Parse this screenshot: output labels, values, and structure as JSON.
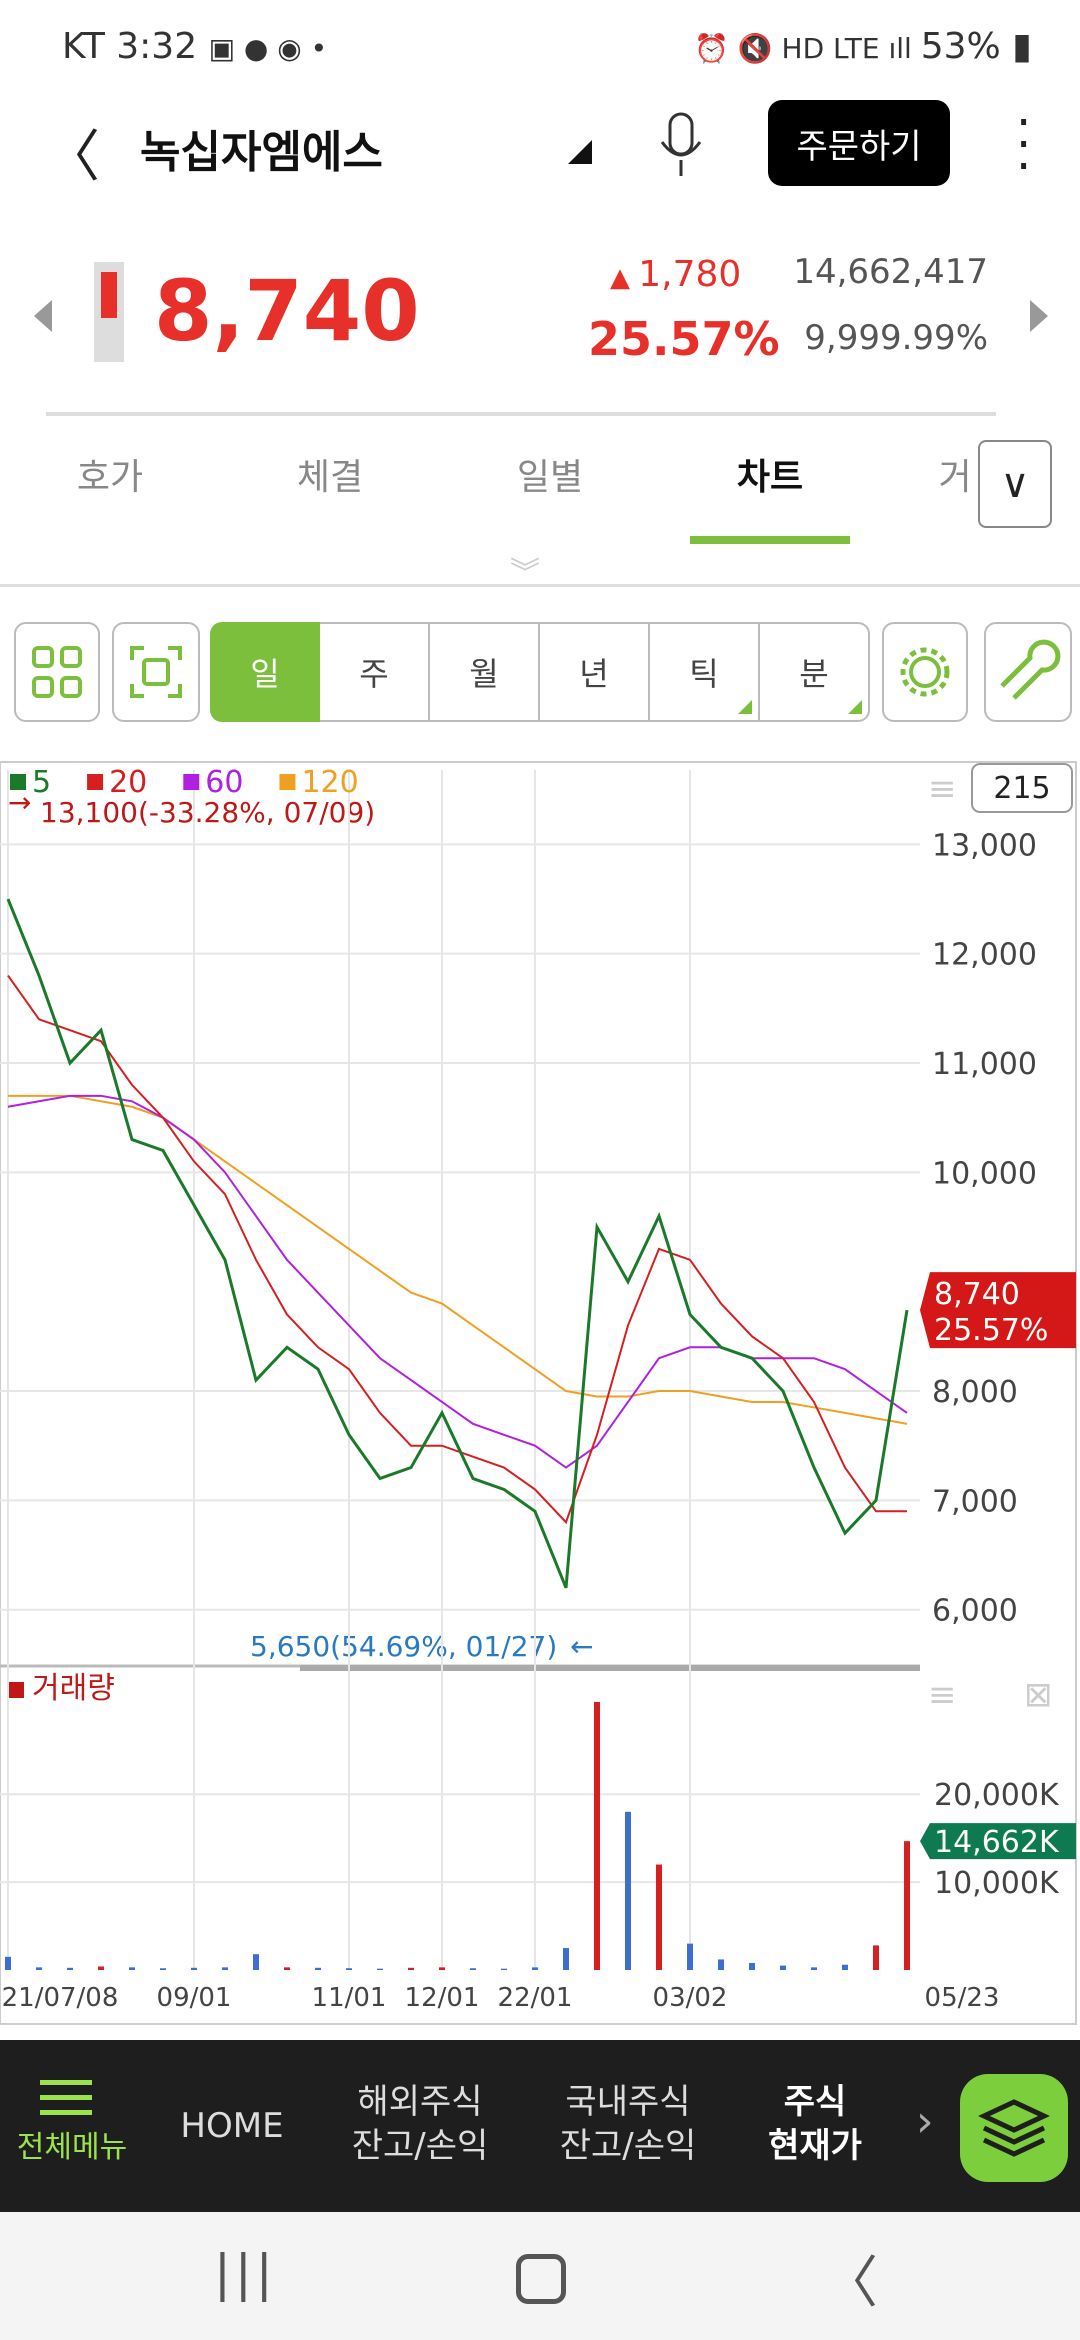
{
  "status": {
    "carrier": "KT",
    "time": "3:32",
    "battery": "53%"
  },
  "header": {
    "title": "녹십자엠에스",
    "order_button": "주문하기"
  },
  "quote": {
    "price": "8,740",
    "change": "1,780",
    "change_pct": "25.57%",
    "volume": "14,662,417",
    "ratio": "9,999.99%"
  },
  "tabs": [
    "호가",
    "체결",
    "일별",
    "차트",
    "거"
  ],
  "periods": [
    "일",
    "주",
    "월",
    "년",
    "틱",
    "분"
  ],
  "chart": {
    "type": "line",
    "categories": [
      "21/07/08",
      null,
      null,
      null,
      null,
      null,
      "09/01",
      null,
      null,
      null,
      null,
      "11/01",
      null,
      null,
      "12/01",
      null,
      null,
      "22/01",
      null,
      null,
      null,
      null,
      "03/02",
      null,
      null,
      null,
      null,
      null,
      null,
      "05/23"
    ],
    "series": [
      {
        "name": "5",
        "color": "#1a7a2a",
        "values": [
          12500,
          11800,
          11000,
          11300,
          10300,
          10200,
          9700,
          9200,
          8100,
          8400,
          8200,
          7600,
          7200,
          7300,
          7800,
          7200,
          7100,
          6900,
          6200,
          9500,
          9000,
          9600,
          8700,
          8400,
          8300,
          8000,
          7300,
          6700,
          7000,
          8740
        ]
      },
      {
        "name": "20",
        "color": "#d42020",
        "values": [
          11800,
          11400,
          11300,
          11200,
          10800,
          10500,
          10100,
          9800,
          9200,
          8700,
          8400,
          8200,
          7800,
          7500,
          7500,
          7400,
          7300,
          7100,
          6800,
          7600,
          8600,
          9300,
          9200,
          8800,
          8500,
          8300,
          7900,
          7300,
          6900,
          6900
        ]
      },
      {
        "name": "60",
        "color": "#b020e0",
        "values": [
          10600,
          10650,
          10700,
          10700,
          10650,
          10500,
          10300,
          10000,
          9600,
          9200,
          8900,
          8600,
          8300,
          8100,
          7900,
          7700,
          7600,
          7500,
          7300,
          7500,
          7900,
          8300,
          8400,
          8400,
          8300,
          8300,
          8300,
          8200,
          8000,
          7800
        ]
      },
      {
        "name": "120",
        "color": "#f0a020",
        "values": [
          10700,
          10700,
          10700,
          10650,
          10600,
          10500,
          10300,
          10100,
          9900,
          9700,
          9500,
          9300,
          9100,
          8900,
          8800,
          8600,
          8400,
          8200,
          8000,
          7950,
          7950,
          8000,
          8000,
          7950,
          7900,
          7900,
          7850,
          7800,
          7750,
          7700
        ]
      }
    ],
    "ylim": [
      5540,
      13680
    ],
    "yticks": [
      {
        "value": 13000,
        "label": "13,000"
      },
      {
        "value": 12000,
        "label": "12,000"
      },
      {
        "value": 11000,
        "label": "11,000"
      },
      {
        "value": 10000,
        "label": "10,000"
      },
      {
        "value": 8000,
        "label": "8,000"
      },
      {
        "value": 7000,
        "label": "7,000"
      },
      {
        "value": 6000,
        "label": "6,000"
      }
    ],
    "count_box": "215",
    "high_note": "13,100(-33.28%, 07/09)",
    "low_note": "5,650(54.69%, 01/27)",
    "current_price": "8,740",
    "current_pct": "25.57%",
    "volume": {
      "name": "거래량",
      "color": "#3d6fd0",
      "values": [
        1500,
        300,
        250,
        400,
        300,
        200,
        250,
        300,
        1800,
        300,
        250,
        200,
        150,
        250,
        300,
        200,
        150,
        300,
        2500,
        30500,
        18000,
        12000,
        3000,
        1200,
        800,
        500,
        300,
        600,
        2800,
        14662
      ],
      "ylim": [
        0,
        33000
      ],
      "yticks": [
        {
          "value": 20000,
          "label": "20,000K"
        },
        {
          "value": 10000,
          "label": "10,000K"
        }
      ],
      "current": "14,662K"
    }
  },
  "bottom_nav": [
    [
      "전체메뉴"
    ],
    [
      "HOME"
    ],
    [
      "해외주식",
      "잔고/손익"
    ],
    [
      "국내주식",
      "잔고/손익"
    ],
    [
      "주식",
      "현재가"
    ]
  ]
}
